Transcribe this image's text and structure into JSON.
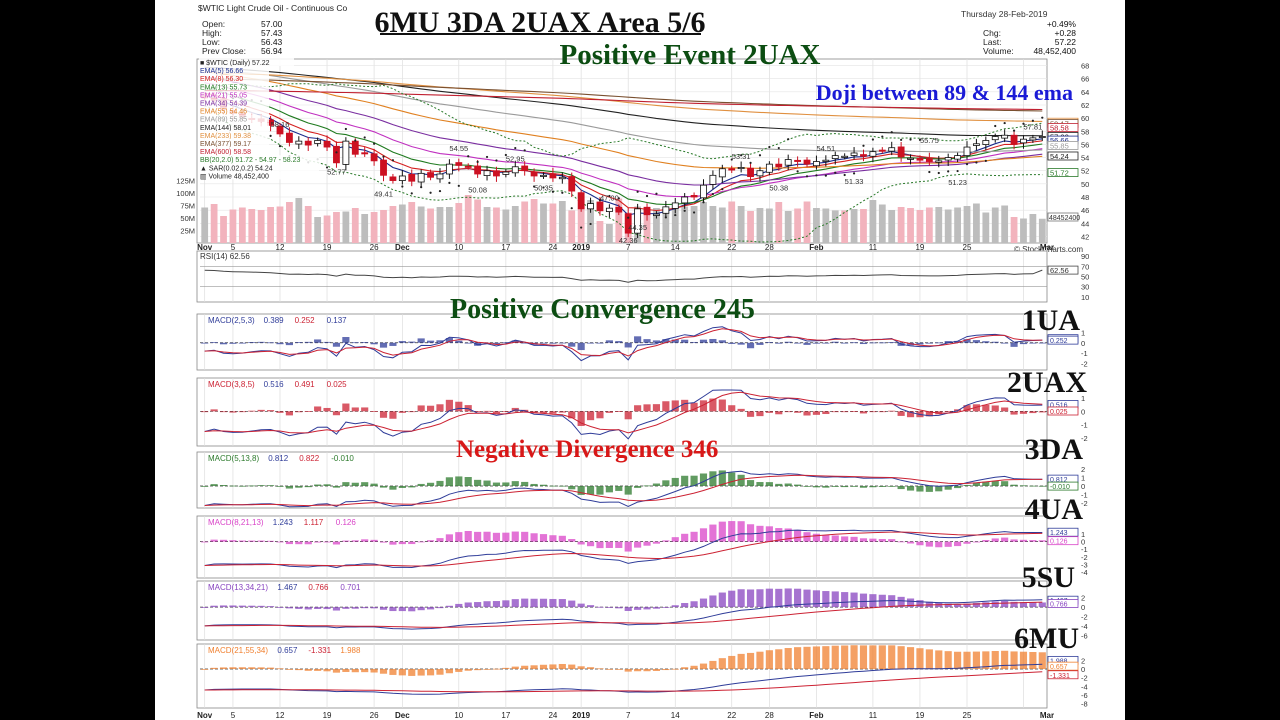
{
  "header": {
    "symbol_line": "$WTIC Light Crude Oil - Continuous Co",
    "quote_left": [
      {
        "label": "Open:",
        "value": "57.00"
      },
      {
        "label": "High:",
        "value": "57.43"
      },
      {
        "label": "Low:",
        "value": "56.43"
      },
      {
        "label": "Prev Close:",
        "value": "56.94"
      }
    ],
    "date": "Thursday 28-Feb-2019",
    "quote_right": [
      {
        "label": "",
        "value": "+0.49%"
      },
      {
        "label": "Chg:",
        "value": "+0.28"
      },
      {
        "label": "Last:",
        "value": "57.22"
      },
      {
        "label": "Volume:",
        "value": "48,452,400"
      }
    ],
    "brand": "© StockCharts.com"
  },
  "annotations": {
    "title": "6MU 3DA 2UAX Area 5/6",
    "subtitle": "Positive Event 2UAX",
    "doji": "Doji between 89 & 144 ema",
    "pos_conv": "Positive Convergence 245",
    "neg_div": "Negative Divergence 346",
    "lbl_1ua": "1UA",
    "lbl_2uax": "2UAX",
    "lbl_3da": "3DA",
    "lbl_4ua": "4UA",
    "lbl_5su": "5SU",
    "lbl_6mu": "6MU"
  },
  "colors": {
    "up": "#111111",
    "down": "#cc1122",
    "vol": "#bdbdbd",
    "vol_down": "#f2b3bd",
    "title": "#111111",
    "subtitle": "#0c4d12",
    "doji": "#1a1ad6",
    "pos_conv": "#0c4d12",
    "neg_div": "#d81818"
  },
  "legend": [
    {
      "text": "■ $WTIC (Daily) 57.22",
      "color": "#222222"
    },
    {
      "text": "EMA(5) 56.66",
      "color": "#1a2b8c"
    },
    {
      "text": "EMA(8) 56.30",
      "color": "#d42020"
    },
    {
      "text": "EMA(13) 55.73",
      "color": "#1f7a1f"
    },
    {
      "text": "EMA(21) 55.05",
      "color": "#c030c0"
    },
    {
      "text": "EMA(34) 54.39",
      "color": "#7a2ea0"
    },
    {
      "text": "EMA(55) 54.46",
      "color": "#e08020"
    },
    {
      "text": "EMA(89) 55.85",
      "color": "#9a9a9a"
    },
    {
      "text": "EMA(144) 58.01",
      "color": "#222222"
    },
    {
      "text": "EMA(233) 59.38",
      "color": "#e09040"
    },
    {
      "text": "EMA(377) 59.17",
      "color": "#7a5030"
    },
    {
      "text": "EMA(600) 58.58",
      "color": "#c02030"
    },
    {
      "text": "BB(20,2.0) 51.72 - 54.97 - 58.23",
      "color": "#2a7a2a"
    },
    {
      "text": "▲ SAR(0.02,0.2) 54.24",
      "color": "#222222"
    },
    {
      "text": "▥ Volume 48,452,400",
      "color": "#222222"
    }
  ],
  "price_axis": {
    "ticks": [
      "68",
      "66",
      "64",
      "62",
      "60",
      "58",
      "56",
      "54",
      "52",
      "50",
      "48",
      "46",
      "44",
      "42"
    ],
    "highlight": [
      {
        "text": "59.38",
        "color": "#e09040"
      },
      {
        "text": "59.17",
        "color": "#7a5030"
      },
      {
        "text": "58.58",
        "color": "#c02030"
      },
      {
        "text": "57.22",
        "color": "#222222"
      },
      {
        "text": "56.66",
        "color": "#1a2b8c"
      },
      {
        "text": "55.85",
        "color": "#9a9a9a"
      },
      {
        "text": "54.24",
        "color": "#222222"
      },
      {
        "text": "51.72",
        "color": "#2a7a2a"
      }
    ],
    "vol_label": "48452400"
  },
  "volume_axis": [
    "125M",
    "100M",
    "75M",
    "50M",
    "25M"
  ],
  "price_callouts": [
    "58.16",
    "52.77",
    "49.41",
    "54.55",
    "50.08",
    "52.95",
    "50.35",
    "47.00",
    "42.36",
    "44.35",
    "53.31",
    "50.38",
    "54.51",
    "51.33",
    "55.75",
    "51.23",
    "57.81"
  ],
  "dates": {
    "top": [
      "Nov",
      "5",
      "12",
      "19",
      "26",
      "Dec",
      "10",
      "17",
      "24",
      "2019",
      "7",
      "14",
      "22",
      "28",
      "Feb",
      "11",
      "19",
      "25",
      "Mar"
    ],
    "bottom": [
      "Nov",
      "5",
      "12",
      "19",
      "26",
      "Dec",
      "10",
      "17",
      "24",
      "2019",
      "7",
      "14",
      "22",
      "28",
      "Feb",
      "11",
      "19",
      "25",
      "Mar"
    ]
  },
  "rsi": {
    "label": "RSI(14) 62.56",
    "value": "62.56",
    "ticks": [
      "90",
      "70",
      "50",
      "30",
      "10"
    ]
  },
  "macd_panels": [
    {
      "label": "MACD(2,5,3)",
      "v1": "0.389",
      "v2": "0.252",
      "v3": "0.137",
      "color": "#2f3c99",
      "ticks": [
        "1",
        "0",
        "-1",
        "-2"
      ],
      "axis_vals": [
        "0.389",
        "0.252"
      ]
    },
    {
      "label": "MACD(3,8,5)",
      "v1": "0.516",
      "v2": "0.491",
      "v3": "0.025",
      "color": "#cc2233",
      "ticks": [
        "1",
        "0",
        "-1",
        "-2"
      ],
      "axis_vals": [
        "0.516",
        "0.025"
      ]
    },
    {
      "label": "MACD(5,13,8)",
      "v1": "0.812",
      "v2": "0.822",
      "v3": "-0.010",
      "color": "#2c7a2c",
      "ticks": [
        "2",
        "1",
        "0",
        "-1",
        "-2"
      ],
      "axis_vals": [
        "0.812",
        "-0.010"
      ]
    },
    {
      "label": "MACD(8,21,13)",
      "v1": "1.243",
      "v2": "1.117",
      "v3": "0.126",
      "color": "#d944c8",
      "ticks": [
        "1",
        "0",
        "-1",
        "-2",
        "-3",
        "-4"
      ],
      "axis_vals": [
        "1.243",
        "0.126"
      ]
    },
    {
      "label": "MACD(13,34,21)",
      "v1": "1.467",
      "v2": "0.766",
      "v3": "0.701",
      "color": "#8844c0",
      "ticks": [
        "2",
        "0",
        "-2",
        "-4",
        "-6"
      ],
      "axis_vals": [
        "1.467",
        "0.766"
      ]
    },
    {
      "label": "MACD(21,55,34)",
      "v1": "0.657",
      "v2": "-1.331",
      "v3": "1.988",
      "color": "#f08030",
      "ticks": [
        "2",
        "0",
        "-2",
        "-4",
        "-6",
        "-8"
      ],
      "axis_vals": [
        "1.988",
        "0.657",
        "-1.331"
      ]
    }
  ],
  "chart_data": {
    "type": "line",
    "title": "6MU 3DA 2UAX Area 5/6",
    "symbol": "$WTIC Light Crude Oil - Continuous Co",
    "x_range": [
      "Nov",
      "Mar"
    ],
    "price_ylim": [
      41,
      69
    ],
    "close": [
      63.1,
      62.7,
      61.3,
      60.7,
      60.2,
      59.9,
      59.5,
      58.9,
      57.6,
      56.3,
      56.5,
      55.9,
      56.6,
      55.6,
      53.2,
      56.5,
      54.5,
      54.7,
      53.5,
      51.3,
      50.5,
      51.2,
      50.4,
      51.6,
      51.0,
      51.5,
      53.0,
      52.8,
      52.6,
      51.5,
      52.0,
      51.2,
      51.8,
      52.6,
      52.0,
      51.2,
      51.3,
      50.9,
      51.0,
      48.9,
      46.2,
      47.0,
      45.9,
      46.3,
      45.7,
      42.5,
      46.2,
      45.3,
      45.4,
      46.5,
      47.1,
      48.0,
      48.0,
      49.8,
      51.3,
      52.3,
      52.1,
      52.5,
      51.1,
      52.0,
      53.0,
      52.6,
      53.7,
      53.5,
      53.0,
      53.4,
      53.6,
      54.3,
      54.2,
      54.7,
      54.2,
      54.9,
      55.1,
      55.5,
      54.1,
      53.9,
      53.6,
      53.4,
      53.5,
      54.0,
      54.3,
      55.6,
      56.1,
      56.6,
      57.2,
      57.4,
      56.0,
      56.8,
      57.0,
      57.22
    ],
    "volume_M": [
      71,
      78,
      54,
      67,
      71,
      68,
      66,
      72,
      73,
      82,
      90,
      74,
      52,
      55,
      62,
      63,
      70,
      58,
      62,
      66,
      74,
      77,
      82,
      73,
      69,
      72,
      72,
      80,
      96,
      87,
      72,
      71,
      67,
      74,
      83,
      88,
      79,
      79,
      84,
      65,
      70,
      86,
      44,
      38,
      89,
      61,
      73,
      71,
      70,
      70,
      71,
      73,
      74,
      82,
      74,
      71,
      83,
      74,
      64,
      70,
      69,
      82,
      64,
      69,
      83,
      70,
      69,
      65,
      65,
      68,
      68,
      86,
      77,
      66,
      72,
      70,
      66,
      71,
      72,
      67,
      71,
      74,
      79,
      61,
      71,
      75,
      52,
      49,
      58,
      48.5
    ],
    "rsi14_last": 62.56,
    "macd_last": [
      {
        "params": "2,5,3",
        "macd": 0.389,
        "signal": 0.252,
        "hist": 0.137
      },
      {
        "params": "3,8,5",
        "macd": 0.516,
        "signal": 0.491,
        "hist": 0.025
      },
      {
        "params": "5,13,8",
        "macd": 0.812,
        "signal": 0.822,
        "hist": -0.01
      },
      {
        "params": "8,21,13",
        "macd": 1.243,
        "signal": 1.117,
        "hist": 0.126
      },
      {
        "params": "13,34,21",
        "macd": 1.467,
        "signal": 0.766,
        "hist": 0.701
      },
      {
        "params": "21,55,34",
        "macd": 0.657,
        "signal": -1.331,
        "hist": 1.988
      }
    ]
  }
}
